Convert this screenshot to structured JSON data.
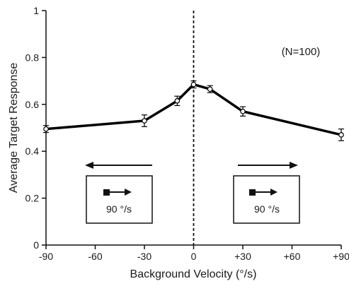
{
  "chart_data": {
    "type": "line",
    "x": [
      -90,
      -30,
      -10,
      0,
      10,
      30,
      90
    ],
    "series": [
      {
        "values": [
          0.495,
          0.53,
          0.615,
          0.685,
          0.665,
          0.57,
          0.47
        ],
        "errors": [
          0.015,
          0.025,
          0.02,
          0.015,
          0.015,
          0.02,
          0.025
        ]
      }
    ],
    "xlabel": "Background Velocity (°/s)",
    "ylabel": "Average Target Response",
    "xlim": [
      -90,
      90
    ],
    "ylim": [
      0,
      1
    ],
    "xticks": [
      -90,
      -60,
      -30,
      0,
      30,
      60,
      90
    ],
    "xtick_labels": [
      "-90",
      "-60",
      "-30",
      "0",
      "+30",
      "+60",
      "+90"
    ],
    "yticks": [
      0,
      0.2,
      0.4,
      0.6,
      0.8,
      1
    ],
    "ytick_labels": [
      "0",
      "0.2",
      "0.4",
      "0.6",
      "0.8",
      "1"
    ],
    "reference_line_x": 0,
    "grid": false,
    "annotation": "(N=100)",
    "insets": [
      {
        "direction": "left",
        "label": "90 °/s"
      },
      {
        "direction": "right",
        "label": "90 °/s"
      }
    ]
  }
}
